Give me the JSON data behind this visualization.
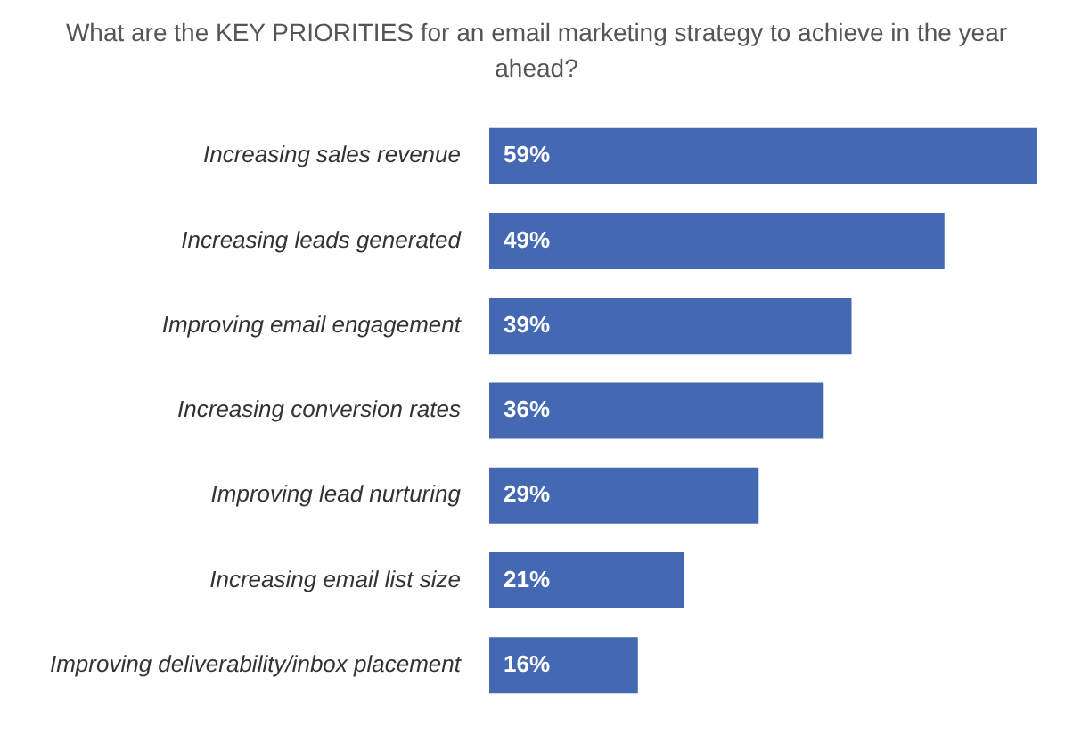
{
  "chart_data": {
    "type": "bar",
    "orientation": "horizontal",
    "title": "What are the KEY PRIORITIES for an email marketing strategy to achieve in the year ahead?",
    "categories": [
      "Increasing sales revenue",
      "Increasing leads generated",
      "Improving email engagement",
      "Increasing conversion rates",
      "Improving lead nurturing",
      "Increasing email list size",
      "Improving deliverability/inbox placement"
    ],
    "values": [
      59,
      49,
      39,
      36,
      29,
      21,
      16
    ],
    "color": "#4468b2",
    "data_labels": true,
    "value_labels": [
      "59%",
      "49%",
      "39%",
      "36%",
      "29%",
      "21%",
      "16%"
    ]
  }
}
